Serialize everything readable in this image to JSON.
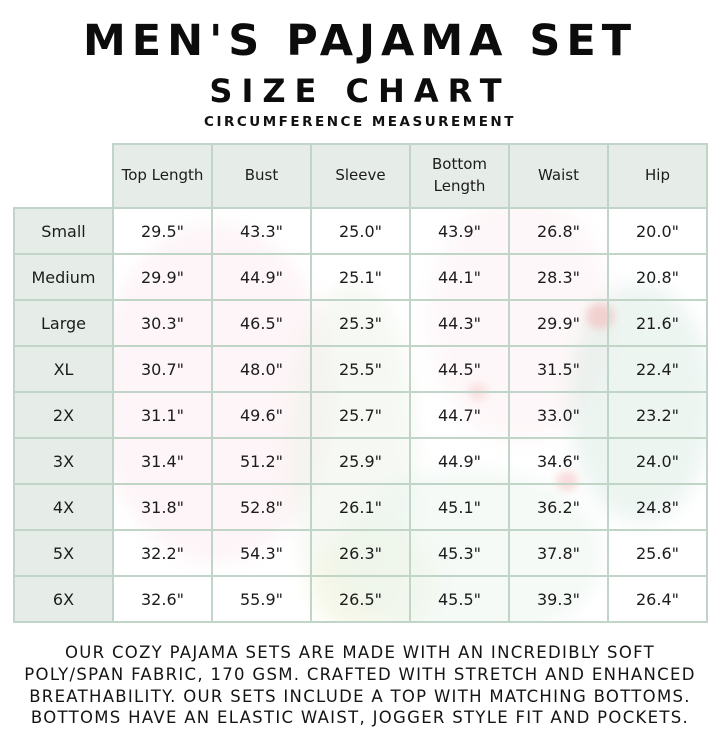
{
  "page": {
    "title": "MEN'S PAJAMA SET",
    "subtitle": "SIZE CHART",
    "measurement_note": "CIRCUMFERENCE MEASUREMENT"
  },
  "table": {
    "columns": [
      "Top Length",
      "Bust",
      "Sleeve",
      "Bottom Length",
      "Waist",
      "Hip"
    ],
    "rows": [
      {
        "size": "Small",
        "cells": [
          "29.5\"",
          "43.3\"",
          "25.0\"",
          "43.9\"",
          "26.8\"",
          "20.0\""
        ]
      },
      {
        "size": "Medium",
        "cells": [
          "29.9\"",
          "44.9\"",
          "25.1\"",
          "44.1\"",
          "28.3\"",
          "20.8\""
        ]
      },
      {
        "size": "Large",
        "cells": [
          "30.3\"",
          "46.5\"",
          "25.3\"",
          "44.3\"",
          "29.9\"",
          "21.6\""
        ]
      },
      {
        "size": "XL",
        "cells": [
          "30.7\"",
          "48.0\"",
          "25.5\"",
          "44.5\"",
          "31.5\"",
          "22.4\""
        ]
      },
      {
        "size": "2X",
        "cells": [
          "31.1\"",
          "49.6\"",
          "25.7\"",
          "44.7\"",
          "33.0\"",
          "23.2\""
        ]
      },
      {
        "size": "3X",
        "cells": [
          "31.4\"",
          "51.2\"",
          "25.9\"",
          "44.9\"",
          "34.6\"",
          "24.0\""
        ]
      },
      {
        "size": "4X",
        "cells": [
          "31.8\"",
          "52.8\"",
          "26.1\"",
          "45.1\"",
          "36.2\"",
          "24.8\""
        ]
      },
      {
        "size": "5X",
        "cells": [
          "32.2\"",
          "54.3\"",
          "26.3\"",
          "45.3\"",
          "37.8\"",
          "25.6\""
        ]
      },
      {
        "size": "6X",
        "cells": [
          "32.6\"",
          "55.9\"",
          "26.5\"",
          "45.5\"",
          "39.3\"",
          "26.4\""
        ]
      }
    ]
  },
  "footer": {
    "lines": [
      "OUR COZY PAJAMA SETS ARE MADE WITH AN INCREDIBLY SOFT",
      "POLY/SPAN FABRIC, 170 GSM. CRAFTED WITH STRETCH AND ENHANCED",
      "BREATHABILITY. OUR SETS INCLUDE A TOP WITH MATCHING BOTTOMS.",
      "BOTTOMS HAVE AN ELASTIC WAIST, JOGGER STYLE FIT AND POCKETS."
    ]
  },
  "colors": {
    "border": "#c0d4c7",
    "header_bg": "#e6ede8",
    "text": "#1c1c1c"
  }
}
